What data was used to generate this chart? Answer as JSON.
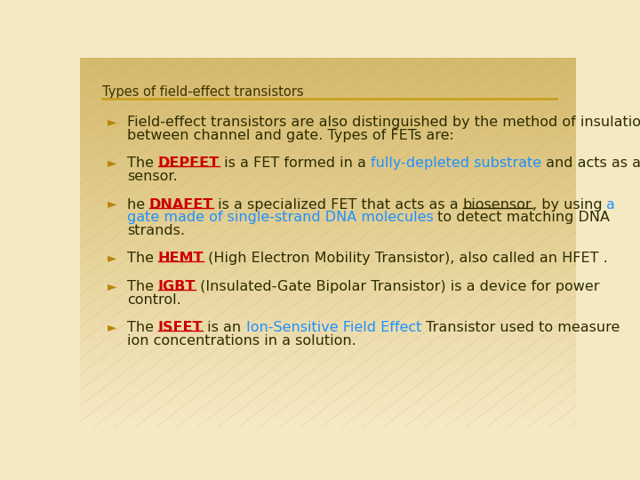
{
  "title": "Types of field-effect transistors",
  "title_color": "#3d3000",
  "title_fontsize": 10.5,
  "bg_color_top": "#f5e9c4",
  "bg_color_bottom": "#d4b96a",
  "divider_color": "#c8a020",
  "bullet_color": "#b8860b",
  "text_color": "#2c2c00",
  "red_color": "#cc0000",
  "blue_color": "#1e90ff",
  "bullet_char": "►",
  "font_size": 11.5,
  "lines": [
    {
      "segments": [
        {
          "text": "Field-effect transistors are also distinguished by the method of insulation\nbetween channel and gate. Types of FETs are:",
          "color": "#2c2c00",
          "bold": false,
          "underline": false
        }
      ]
    },
    {
      "segments": [
        {
          "text": "The ",
          "color": "#2c2c00",
          "bold": false,
          "underline": false
        },
        {
          "text": "DEPFET",
          "color": "#cc0000",
          "bold": true,
          "underline": true
        },
        {
          "text": " is a FET formed in a ",
          "color": "#2c2c00",
          "bold": false,
          "underline": false
        },
        {
          "text": "fully-depleted substrate",
          "color": "#1e90ff",
          "bold": false,
          "underline": false
        },
        {
          "text": " and acts as a\nsensor.",
          "color": "#2c2c00",
          "bold": false,
          "underline": false
        }
      ]
    },
    {
      "segments": [
        {
          "text": "he ",
          "color": "#2c2c00",
          "bold": false,
          "underline": false
        },
        {
          "text": "DNAFET",
          "color": "#cc0000",
          "bold": true,
          "underline": true
        },
        {
          "text": " is a specialized FET that acts as a ",
          "color": "#2c2c00",
          "bold": false,
          "underline": false
        },
        {
          "text": "biosensor",
          "color": "#2c2c00",
          "bold": false,
          "underline": true
        },
        {
          "text": ", by using ",
          "color": "#2c2c00",
          "bold": false,
          "underline": false
        },
        {
          "text": "a\ngate made of single-strand DNA molecules",
          "color": "#1e90ff",
          "bold": false,
          "underline": false
        },
        {
          "text": " to detect matching DNA\nstrands.",
          "color": "#2c2c00",
          "bold": false,
          "underline": false
        }
      ]
    },
    {
      "segments": [
        {
          "text": "The ",
          "color": "#2c2c00",
          "bold": false,
          "underline": false
        },
        {
          "text": "HEMT",
          "color": "#cc0000",
          "bold": true,
          "underline": true
        },
        {
          "text": " (High Electron Mobility Transistor), also called an HFET .",
          "color": "#2c2c00",
          "bold": false,
          "underline": false
        }
      ]
    },
    {
      "segments": [
        {
          "text": "The ",
          "color": "#2c2c00",
          "bold": false,
          "underline": false
        },
        {
          "text": "IGBT",
          "color": "#cc0000",
          "bold": true,
          "underline": true
        },
        {
          "text": " (Insulated-Gate Bipolar Transistor) is a device for power\ncontrol.",
          "color": "#2c2c00",
          "bold": false,
          "underline": false
        }
      ]
    },
    {
      "segments": [
        {
          "text": "The ",
          "color": "#2c2c00",
          "bold": false,
          "underline": false
        },
        {
          "text": "ISFET",
          "color": "#cc0000",
          "bold": true,
          "underline": true
        },
        {
          "text": " is an ",
          "color": "#2c2c00",
          "bold": false,
          "underline": false
        },
        {
          "text": "Ion-Sensitive Field Effect",
          "color": "#1e90ff",
          "bold": false,
          "underline": false
        },
        {
          "text": " Transistor used to measure\nion concentrations in a solution.",
          "color": "#2c2c00",
          "bold": false,
          "underline": false
        }
      ]
    }
  ]
}
